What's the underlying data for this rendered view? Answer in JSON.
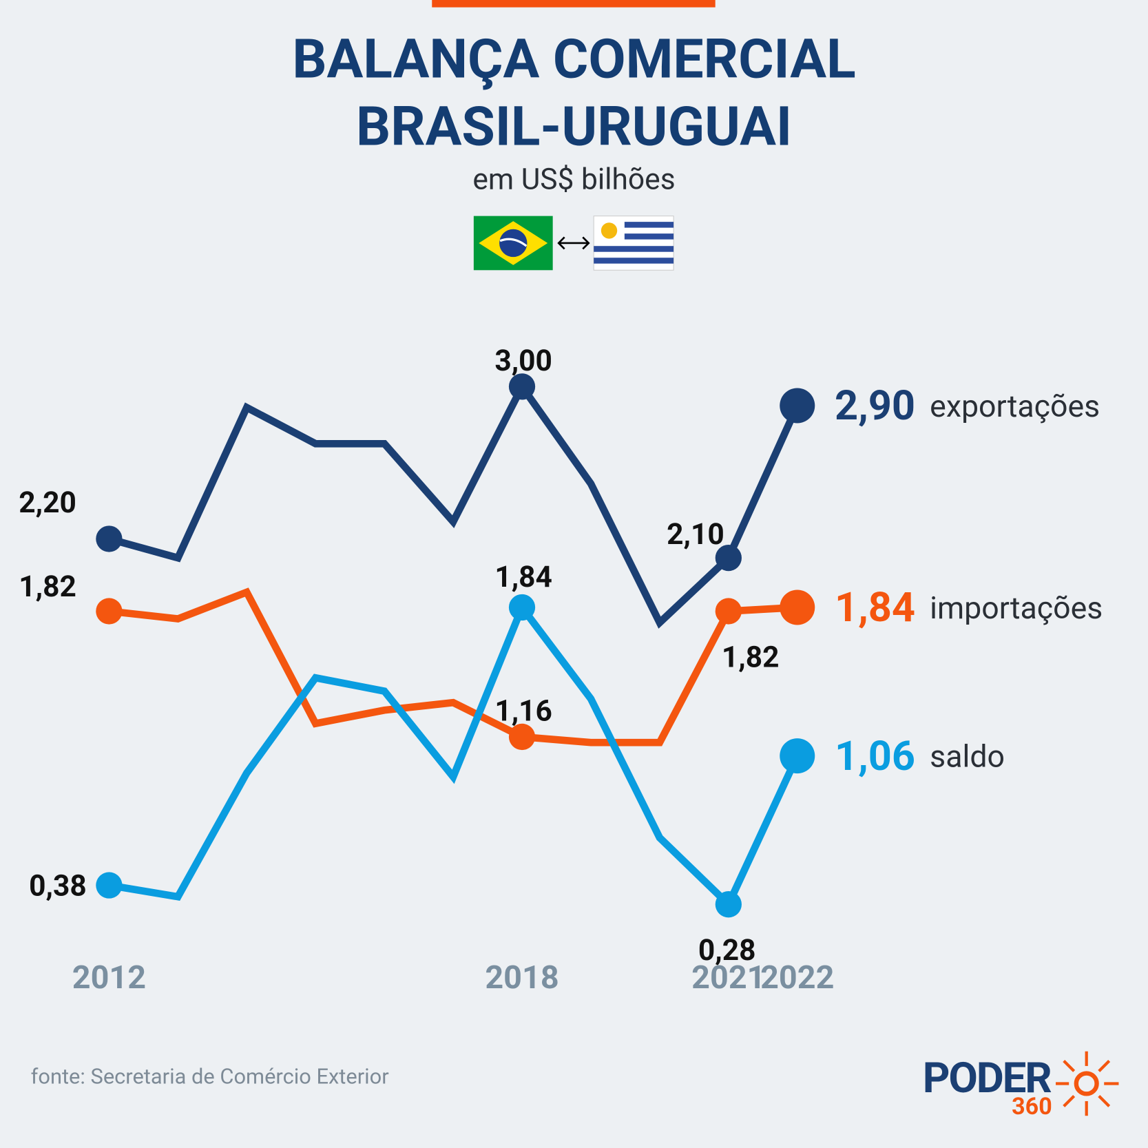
{
  "chart_data": {
    "type": "line",
    "title": [
      "BALANÇA COMERCIAL",
      "BRASIL-URUGUAI"
    ],
    "subtitle": "em US$ bilhões",
    "x": [
      2012,
      2013,
      2014,
      2015,
      2016,
      2017,
      2018,
      2019,
      2020,
      2021,
      2022
    ],
    "xlim": [
      2012,
      2022
    ],
    "xticks": [
      2012,
      2018,
      2021,
      2022
    ],
    "ylim": [
      0,
      3.2
    ],
    "series": [
      {
        "name": "exportações",
        "color": "#1b3f73",
        "values": [
          2.2,
          2.1,
          2.89,
          2.7,
          2.7,
          2.29,
          3.0,
          2.49,
          1.76,
          2.1,
          2.9
        ],
        "value_labels": [
          "2,20",
          null,
          null,
          null,
          null,
          null,
          "3,00",
          null,
          null,
          "2,10",
          "2,90"
        ]
      },
      {
        "name": "importações",
        "color": "#f4560f",
        "values": [
          1.82,
          1.78,
          1.92,
          1.23,
          1.3,
          1.34,
          1.16,
          1.13,
          1.13,
          1.82,
          1.84
        ],
        "value_labels": [
          "1,82",
          null,
          null,
          null,
          null,
          null,
          "1,16",
          null,
          null,
          "1,82",
          "1,84"
        ]
      },
      {
        "name": "saldo",
        "color": "#0a9de0",
        "values": [
          0.38,
          0.32,
          0.97,
          1.47,
          1.4,
          0.95,
          1.84,
          1.36,
          0.63,
          0.28,
          1.06
        ],
        "value_labels": [
          "0,38",
          null,
          null,
          null,
          null,
          null,
          "1,84",
          null,
          null,
          "0,28",
          "1,06"
        ]
      }
    ],
    "source": "fonte: Secretaria de Comércio Exterior"
  },
  "logo": {
    "name": "PODER",
    "number": "360"
  }
}
